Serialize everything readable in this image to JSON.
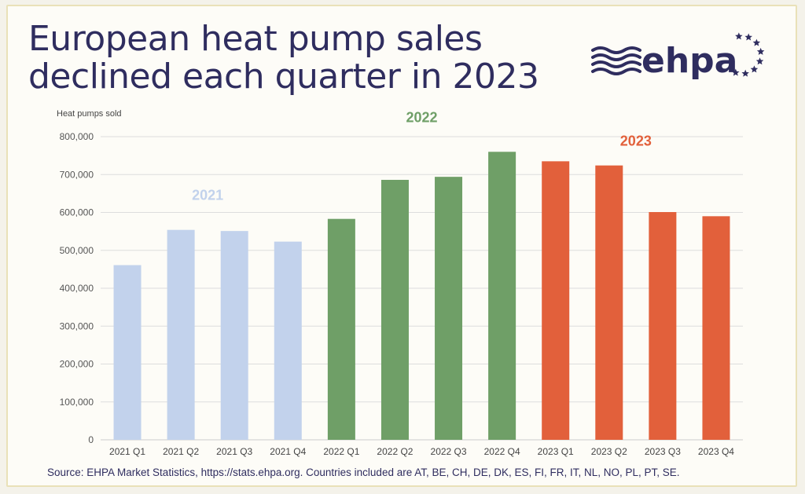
{
  "title_lines": [
    "European heat pump sales",
    "declined each quarter in 2023"
  ],
  "logo": {
    "text": "ehpa",
    "icon": "ehpa-waves-and-stars-logo",
    "color": "#2f2d5f"
  },
  "source": "Source: EHPA Market Statistics, https://stats.ehpa.org. Countries included are AT, BE, CH, DE, DK, ES, FI, FR, IT, NL, NO, PL, PT, SE.",
  "chart_data": {
    "type": "bar",
    "ylabel": "Heat pumps sold",
    "xlabel": "",
    "ylim": [
      0,
      800000
    ],
    "yticks": [
      "0",
      "100,000",
      "200,000",
      "300,000",
      "400,000",
      "500,000",
      "600,000",
      "700,000",
      "800,000"
    ],
    "ytick_values": [
      0,
      100000,
      200000,
      300000,
      400000,
      500000,
      600000,
      700000,
      800000
    ],
    "grid": true,
    "categories": [
      "2021 Q1",
      "2021 Q2",
      "2021 Q3",
      "2021 Q4",
      "2022 Q1",
      "2022 Q2",
      "2022 Q3",
      "2022 Q4",
      "2023 Q1",
      "2023 Q2",
      "2023 Q3",
      "2023 Q4"
    ],
    "values": [
      461000,
      554000,
      551000,
      523000,
      583000,
      686000,
      694000,
      760000,
      735000,
      724000,
      601000,
      590000
    ],
    "bar_groups": [
      0,
      0,
      0,
      0,
      1,
      1,
      1,
      1,
      2,
      2,
      2,
      2
    ],
    "groups": [
      {
        "label": "2021",
        "color": "#c2d2ec"
      },
      {
        "label": "2022",
        "color": "#6f9f67"
      },
      {
        "label": "2023",
        "color": "#e2603b"
      }
    ]
  }
}
